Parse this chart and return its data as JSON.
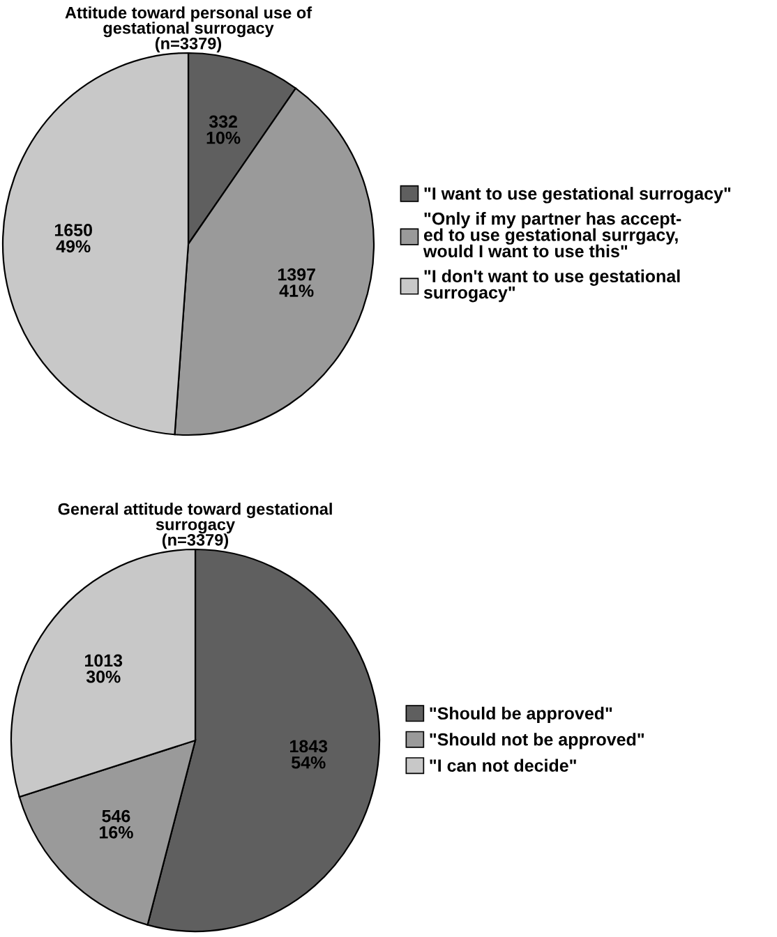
{
  "chart_data": [
    {
      "type": "pie",
      "title": "Attitude toward personal use of\ngestational surrogacy\n(n=3379)",
      "categories": [
        "\"I want to use gestational surrogacy\"",
        "\"Only if my partner has accept-\ned to use gestational surrgacy,\nwould I want to use this\"",
        "\"I don't want to use gestational\nsurrogacy\""
      ],
      "values": [
        332,
        1397,
        1650
      ],
      "value_labels": [
        "332\n10%",
        "1397\n41%",
        "1650\n49%"
      ],
      "colors": [
        "#5f5f5f",
        "#9a9a9a",
        "#c8c8c8"
      ],
      "legend": "right"
    },
    {
      "type": "pie",
      "title": "General attitude toward gestational\nsurrogacy\n(n=3379)",
      "categories": [
        "\"Should be approved\"",
        "\"Should not be approved\"",
        "\"I can not decide\""
      ],
      "values": [
        1843,
        546,
        1013
      ],
      "value_labels": [
        "1843\n54%",
        "546\n16%",
        "1013\n30%"
      ],
      "colors": [
        "#5f5f5f",
        "#9a9a9a",
        "#c8c8c8"
      ],
      "legend": "right"
    }
  ]
}
